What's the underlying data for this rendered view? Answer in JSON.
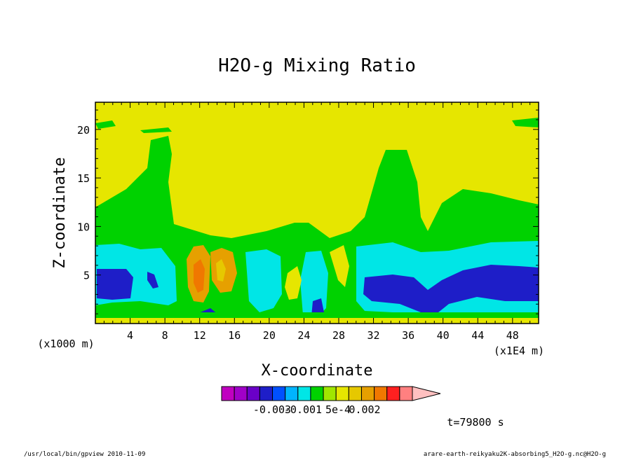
{
  "chart_data": {
    "type": "heatmap",
    "title": "H2O-g Mixing Ratio",
    "xlabel": "X-coordinate",
    "ylabel": "Z-coordinate",
    "x_unit": "(x1E4 m)",
    "y_unit": "(x1000 m)",
    "xlim": [
      0,
      51
    ],
    "ylim": [
      0,
      22.8
    ],
    "x_ticks": [
      "4",
      "8",
      "12",
      "16",
      "20",
      "24",
      "28",
      "32",
      "36",
      "40",
      "44",
      "48"
    ],
    "x_tick_values": [
      4,
      8,
      12,
      16,
      20,
      24,
      28,
      32,
      36,
      40,
      44,
      48
    ],
    "y_ticks": [
      "5",
      "10",
      "15",
      "20"
    ],
    "y_tick_values": [
      5,
      10,
      15,
      20
    ],
    "colorbar": {
      "colors": [
        "#c000c0",
        "#a000c8",
        "#6a00c8",
        "#1e1ec8",
        "#0050ff",
        "#00b4ff",
        "#00e6e6",
        "#00d200",
        "#a0e600",
        "#e6e600",
        "#e6c800",
        "#e6a000",
        "#f07800",
        "#ff2020",
        "#ff8080",
        "#ffc0c0"
      ],
      "labels": [
        "-0.003",
        "-0.001",
        "5e-4",
        "0.002"
      ]
    },
    "time_label": "t=79800 s",
    "footer_left": "/usr/local/bin/gpview   2010-11-09",
    "footer_right": "arare-earth-reikyaku2K-absorbing5_H2O-g.nc@H2O-g"
  }
}
